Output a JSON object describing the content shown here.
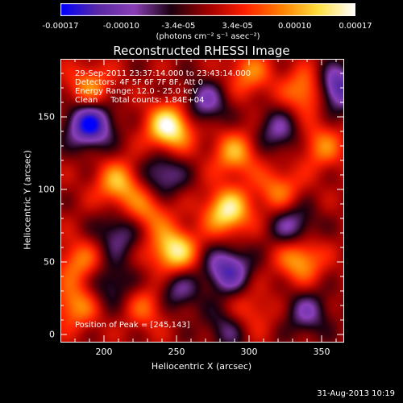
{
  "colorbar": {
    "ticks": [
      "-0.00017",
      "-0.00010",
      "-3.4e-05",
      "3.4e-05",
      "0.00010",
      "0.00017"
    ],
    "tick_values": [
      -0.00017,
      -0.0001,
      -3.4e-05,
      3.4e-05,
      0.0001,
      0.00017
    ],
    "range": [
      -0.00017,
      0.00017
    ],
    "units": "(photons cm⁻² s⁻¹ asec⁻²)",
    "colors": [
      "#0000ff",
      "#5a2aa6",
      "#8a3fb8",
      "#1a0010",
      "#a00000",
      "#ff2000",
      "#ff8000",
      "#ffe040",
      "#ffffff"
    ]
  },
  "title": "Reconstructed RHESSI Image",
  "annotation": {
    "line1": "29-Sep-2011 23:37:14.000 to 23:43:14.000",
    "line2": "Detectors: 4F 5F 6F 7F 8F, Att 0",
    "line3": "Energy Range: 12.0 - 25.0 keV",
    "line4": "Clean     Total counts: 1.84E+04",
    "peak": "Position of Peak = [245,143]"
  },
  "footer": {
    "date": "31-Aug-2013 10:19"
  },
  "chart_data": {
    "type": "heatmap",
    "title": "Reconstructed RHESSI Image",
    "xlabel": "Heliocentric X (arcsec)",
    "ylabel": "Heliocentric Y (arcsec)",
    "xlim": [
      170,
      365
    ],
    "ylim": [
      -5,
      190
    ],
    "xticks": [
      200,
      250,
      300,
      350
    ],
    "yticks": [
      0,
      50,
      100,
      150
    ],
    "value_range": [
      -0.00017,
      0.00017
    ],
    "sources": [
      {
        "x": 245,
        "y": 143,
        "v": 0.00017
      },
      {
        "x": 248,
        "y": 58,
        "v": 0.00015
      },
      {
        "x": 285,
        "y": 85,
        "v": 0.00015
      },
      {
        "x": 210,
        "y": 104,
        "v": 0.00011
      },
      {
        "x": 340,
        "y": 168,
        "v": 0.00011
      },
      {
        "x": 190,
        "y": 170,
        "v": 9e-05
      },
      {
        "x": 290,
        "y": 125,
        "v": 0.0001
      },
      {
        "x": 335,
        "y": 52,
        "v": 0.00011
      },
      {
        "x": 300,
        "y": 180,
        "v": 8e-05
      },
      {
        "x": 230,
        "y": 20,
        "v": 7e-05
      },
      {
        "x": 180,
        "y": 20,
        "v": 9e-05
      },
      {
        "x": 350,
        "y": 130,
        "v": 8e-05
      },
      {
        "x": 320,
        "y": 100,
        "v": 8e-05
      },
      {
        "x": 183,
        "y": 50,
        "v": 8e-05
      },
      {
        "x": 300,
        "y": 15,
        "v": 6e-05
      },
      {
        "x": 230,
        "y": 85,
        "v": 8e-05
      },
      {
        "x": 190,
        "y": 145,
        "v": -0.00017
      },
      {
        "x": 360,
        "y": 170,
        "v": -0.00015
      },
      {
        "x": 285,
        "y": 45,
        "v": -0.00013
      },
      {
        "x": 240,
        "y": 110,
        "v": -9e-05
      },
      {
        "x": 270,
        "y": 160,
        "v": -9e-05
      },
      {
        "x": 320,
        "y": 140,
        "v": -8e-05
      },
      {
        "x": 210,
        "y": 70,
        "v": -8e-05
      },
      {
        "x": 330,
        "y": 75,
        "v": -9e-05
      },
      {
        "x": 250,
        "y": 30,
        "v": -8e-05
      },
      {
        "x": 340,
        "y": 15,
        "v": -8e-05
      },
      {
        "x": 205,
        "y": 35,
        "v": -7e-05
      },
      {
        "x": 285,
        "y": 5,
        "v": -7e-05
      }
    ]
  }
}
